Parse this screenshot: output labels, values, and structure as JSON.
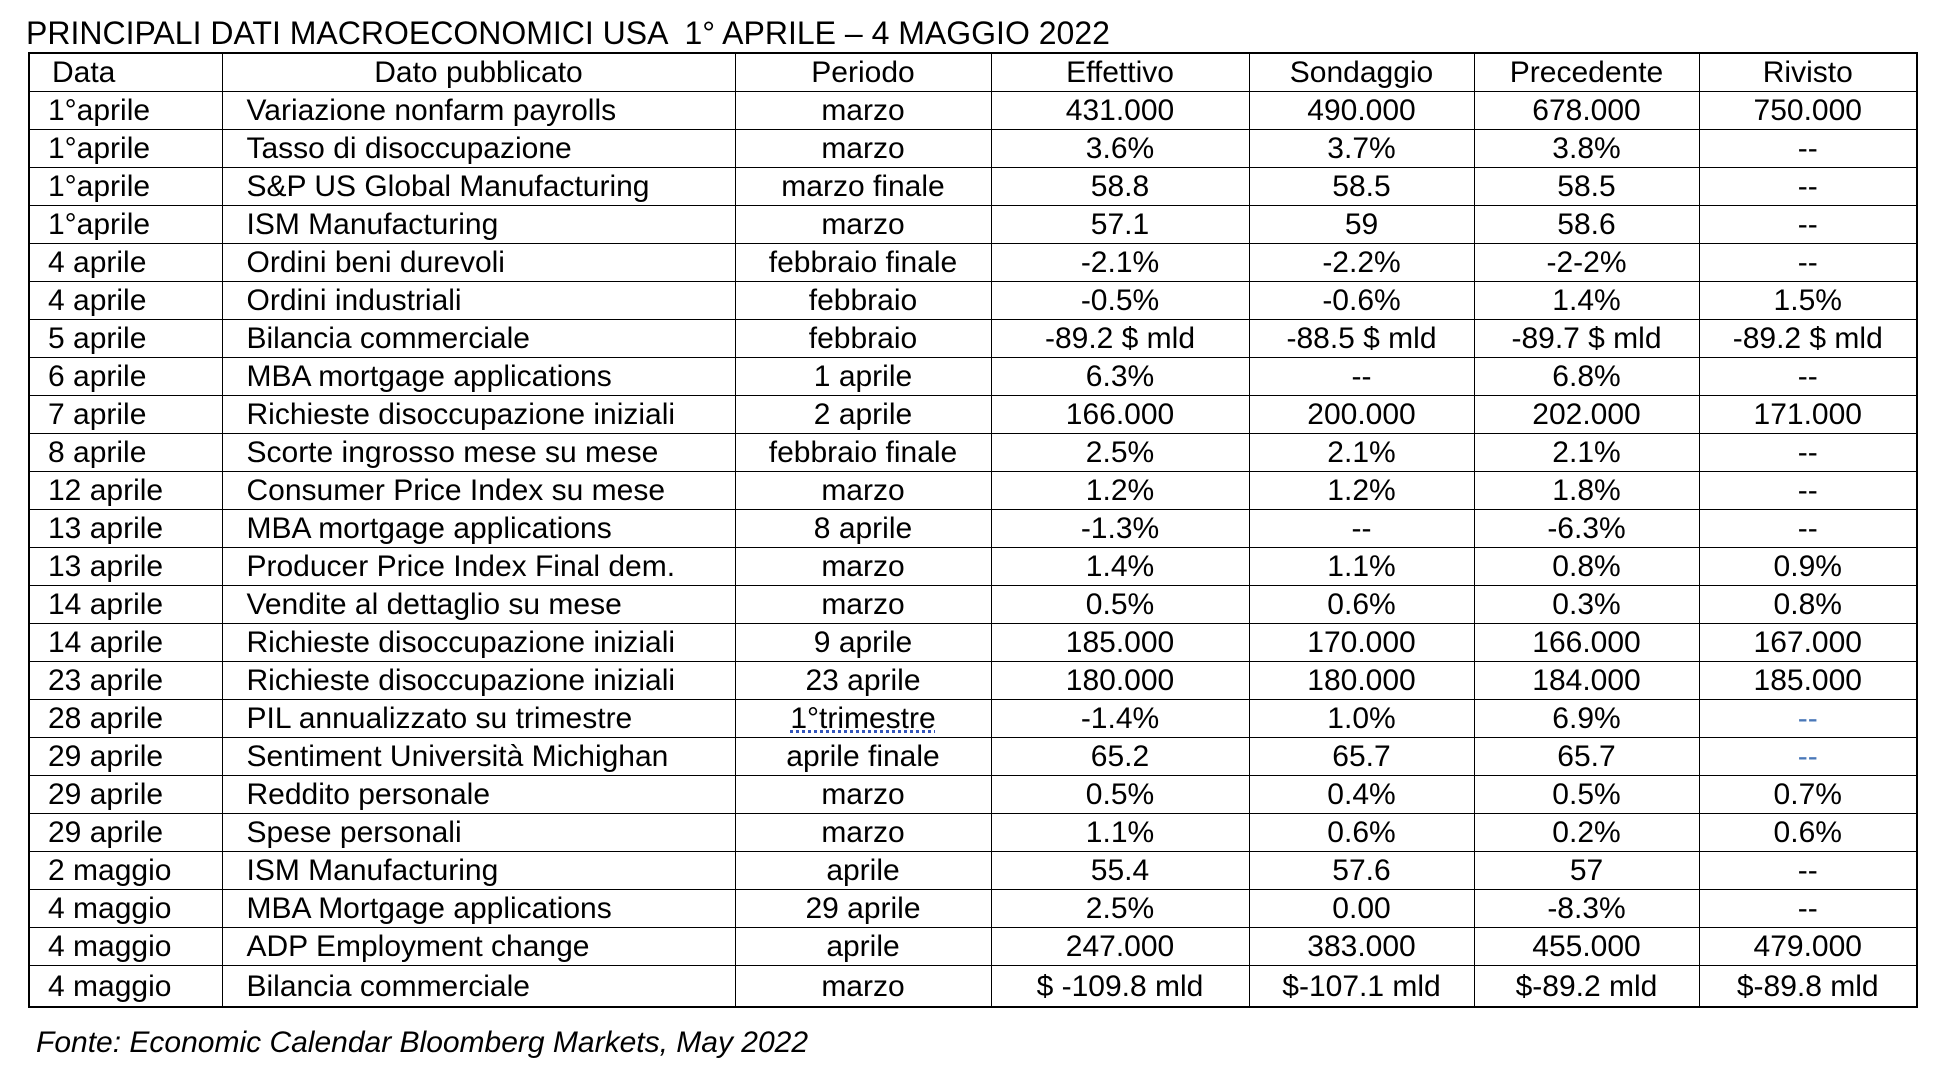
{
  "title": "PRINCIPALI DATI MACROECONOMICI USA  1° APRILE – 4 MAGGIO 2022",
  "headers": [
    "Data",
    "Dato pubblicato",
    "Periodo",
    "Effettivo",
    "Sondaggio",
    "Precedente",
    "Rivisto"
  ],
  "rows": [
    [
      "1°aprile",
      "Variazione nonfarm payrolls",
      "marzo",
      "431.000",
      "490.000",
      "678.000",
      "750.000"
    ],
    [
      "1°aprile",
      "Tasso di disoccupazione",
      "marzo",
      "3.6%",
      "3.7%",
      "3.8%",
      "--"
    ],
    [
      "1°aprile",
      "S&P US Global Manufacturing",
      "marzo finale",
      "58.8",
      "58.5",
      "58.5",
      "--"
    ],
    [
      "1°aprile",
      "ISM Manufacturing",
      "marzo",
      "57.1",
      "59",
      "58.6",
      "--"
    ],
    [
      "4 aprile",
      "Ordini beni durevoli",
      "febbraio finale",
      "-2.1%",
      "-2.2%",
      "-2-2%",
      "--"
    ],
    [
      "4 aprile",
      "Ordini industriali",
      "febbraio",
      "-0.5%",
      "-0.6%",
      "1.4%",
      "1.5%"
    ],
    [
      "5 aprile",
      "Bilancia commerciale",
      "febbraio",
      "-89.2 $ mld",
      "-88.5 $ mld",
      "-89.7 $ mld",
      "-89.2 $ mld"
    ],
    [
      "6 aprile",
      "MBA mortgage applications",
      "1 aprile",
      "6.3%",
      "--",
      "6.8%",
      "--"
    ],
    [
      "7 aprile",
      "Richieste disoccupazione iniziali",
      "2 aprile",
      "166.000",
      "200.000",
      "202.000",
      "171.000"
    ],
    [
      "8 aprile",
      "Scorte ingrosso mese su mese",
      "febbraio finale",
      "2.5%",
      "2.1%",
      "2.1%",
      "--"
    ],
    [
      "12 aprile",
      "Consumer Price Index su mese",
      "marzo",
      "1.2%",
      "1.2%",
      "1.8%",
      "--"
    ],
    [
      "13 aprile",
      "MBA mortgage applications",
      "8 aprile",
      "-1.3%",
      "--",
      "-6.3%",
      "--"
    ],
    [
      "13 aprile",
      "Producer Price Index Final dem.",
      "marzo",
      "1.4%",
      "1.1%",
      "0.8%",
      "0.9%"
    ],
    [
      "14 aprile",
      "Vendite al dettaglio su mese",
      "marzo",
      "0.5%",
      "0.6%",
      "0.3%",
      "0.8%"
    ],
    [
      "14 aprile",
      "Richieste disoccupazione iniziali",
      "9 aprile",
      "185.000",
      "170.000",
      "166.000",
      "167.000"
    ],
    [
      "23 aprile",
      "Richieste disoccupazione iniziali",
      "23 aprile",
      "180.000",
      "180.000",
      "184.000",
      "185.000"
    ],
    [
      "28 aprile",
      "PIL annualizzato su trimestre",
      "1°trimestre",
      "-1.4%",
      "1.0%",
      "6.9%",
      "--"
    ],
    [
      "29 aprile",
      "Sentiment Università Michighan",
      "aprile finale",
      "65.2",
      "65.7",
      "65.7",
      "--"
    ],
    [
      "29 aprile",
      "Reddito personale",
      "marzo",
      "0.5%",
      "0.4%",
      "0.5%",
      "0.7%"
    ],
    [
      "29 aprile",
      "Spese personali",
      "marzo",
      "1.1%",
      "0.6%",
      "0.2%",
      "0.6%"
    ],
    [
      "2 maggio",
      "ISM Manufacturing",
      "aprile",
      "55.4",
      "57.6",
      "57",
      "--"
    ],
    [
      "4 maggio",
      "MBA Mortgage applications",
      "29 aprile",
      "2.5%",
      "0.00",
      "-8.3%",
      "--"
    ],
    [
      "4 maggio",
      "ADP Employment change",
      "aprile",
      "247.000",
      "383.000",
      "455.000",
      "479.000"
    ],
    [
      "4 maggio",
      "Bilancia commerciale",
      "marzo",
      "$ -109.8 mld",
      "$-107.1 mld",
      "$-89.2 mld",
      "$-89.8 mld"
    ]
  ],
  "source": "Fonte: Economic Calendar Bloomberg Markets, May 2022",
  "colors": {
    "text": "#000000",
    "border": "#000000",
    "blue_dash": "#4a78b8"
  }
}
